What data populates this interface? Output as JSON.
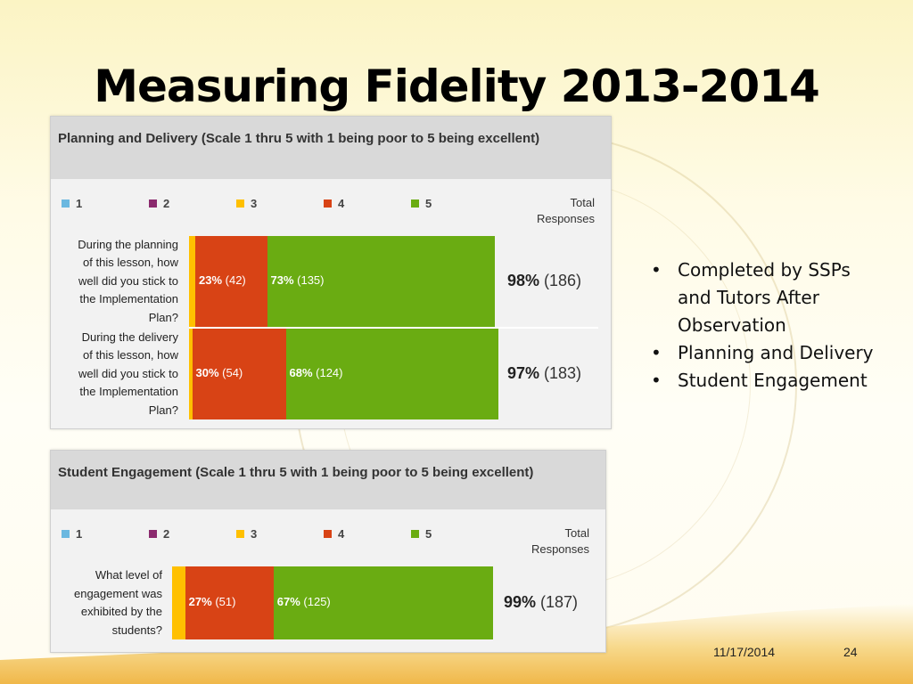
{
  "slide": {
    "title": "Measuring Fidelity 2013-2014",
    "bullets": [
      "Completed by SSPs and Tutors After Observation",
      "Planning and Delivery",
      "Student Engagement"
    ],
    "footer_date": "11/17/2014",
    "page_number": "24"
  },
  "chart_data": [
    {
      "type": "bar",
      "stacked": true,
      "orientation": "horizontal",
      "title": "Planning and Delivery",
      "subtitle": "(Scale 1 thru 5 with 1 being poor to 5 being excellent)",
      "legend": [
        "1",
        "2",
        "3",
        "4",
        "5"
      ],
      "total_label": [
        "Total",
        "Responses"
      ],
      "colors": {
        "1": "#6bb8e0",
        "2": "#8b2a6e",
        "3": "#ffc000",
        "4": "#d84315",
        "5": "#6aac12"
      },
      "categories": [
        "During the planning of this lesson, how well did you stick to the Implementation Plan?",
        "During the delivery of this lesson, how well did you stick to the Implementation Plan?"
      ],
      "category_lines": [
        [
          "During the planning",
          "of this lesson, how",
          "well did you stick to",
          "the Implementation",
          "Plan?"
        ],
        [
          "During the delivery",
          "of this lesson, how",
          "well did you stick to",
          "the Implementation",
          "Plan?"
        ]
      ],
      "series": [
        {
          "name": "1",
          "values": [
            0,
            0
          ],
          "counts": [
            0,
            0
          ]
        },
        {
          "name": "2",
          "values": [
            0,
            0
          ],
          "counts": [
            0,
            0
          ]
        },
        {
          "name": "3",
          "values": [
            2,
            1
          ],
          "counts": [
            4,
            2
          ]
        },
        {
          "name": "4",
          "values": [
            23,
            30
          ],
          "counts": [
            42,
            54
          ]
        },
        {
          "name": "5",
          "values": [
            73,
            68
          ],
          "counts": [
            135,
            124
          ]
        }
      ],
      "segment_labels": [
        [
          {
            "series": "4",
            "pct": "23%",
            "count": "(42)"
          },
          {
            "series": "5",
            "pct": "73%",
            "count": "(135)"
          }
        ],
        [
          {
            "series": "4",
            "pct": "30%",
            "count": "(54)"
          },
          {
            "series": "5",
            "pct": "68%",
            "count": "(124)"
          }
        ]
      ],
      "totals": [
        {
          "pct": "98%",
          "count": "(186)"
        },
        {
          "pct": "97%",
          "count": "(183)"
        }
      ]
    },
    {
      "type": "bar",
      "stacked": true,
      "orientation": "horizontal",
      "title": "Student Engagement",
      "subtitle": "(Scale 1 thru 5 with 1 being poor to 5 being excellent)",
      "legend": [
        "1",
        "2",
        "3",
        "4",
        "5"
      ],
      "total_label": [
        "Total",
        "Responses"
      ],
      "colors": {
        "1": "#6bb8e0",
        "2": "#8b2a6e",
        "3": "#ffc000",
        "4": "#d84315",
        "5": "#6aac12"
      },
      "categories": [
        "What level of engagement was exhibited by the students?"
      ],
      "category_lines": [
        [
          "What level of",
          "engagement was",
          "exhibited by the",
          "students?"
        ]
      ],
      "series": [
        {
          "name": "1",
          "values": [
            0
          ],
          "counts": [
            0
          ]
        },
        {
          "name": "2",
          "values": [
            0
          ],
          "counts": [
            0
          ]
        },
        {
          "name": "3",
          "values": [
            4
          ],
          "counts": [
            8
          ]
        },
        {
          "name": "4",
          "values": [
            27
          ],
          "counts": [
            51
          ]
        },
        {
          "name": "5",
          "values": [
            67
          ],
          "counts": [
            125
          ]
        }
      ],
      "segment_labels": [
        [
          {
            "series": "4",
            "pct": "27%",
            "count": "(51)"
          },
          {
            "series": "5",
            "pct": "67%",
            "count": "(125)"
          }
        ]
      ],
      "totals": [
        {
          "pct": "99%",
          "count": "(187)"
        }
      ]
    }
  ]
}
